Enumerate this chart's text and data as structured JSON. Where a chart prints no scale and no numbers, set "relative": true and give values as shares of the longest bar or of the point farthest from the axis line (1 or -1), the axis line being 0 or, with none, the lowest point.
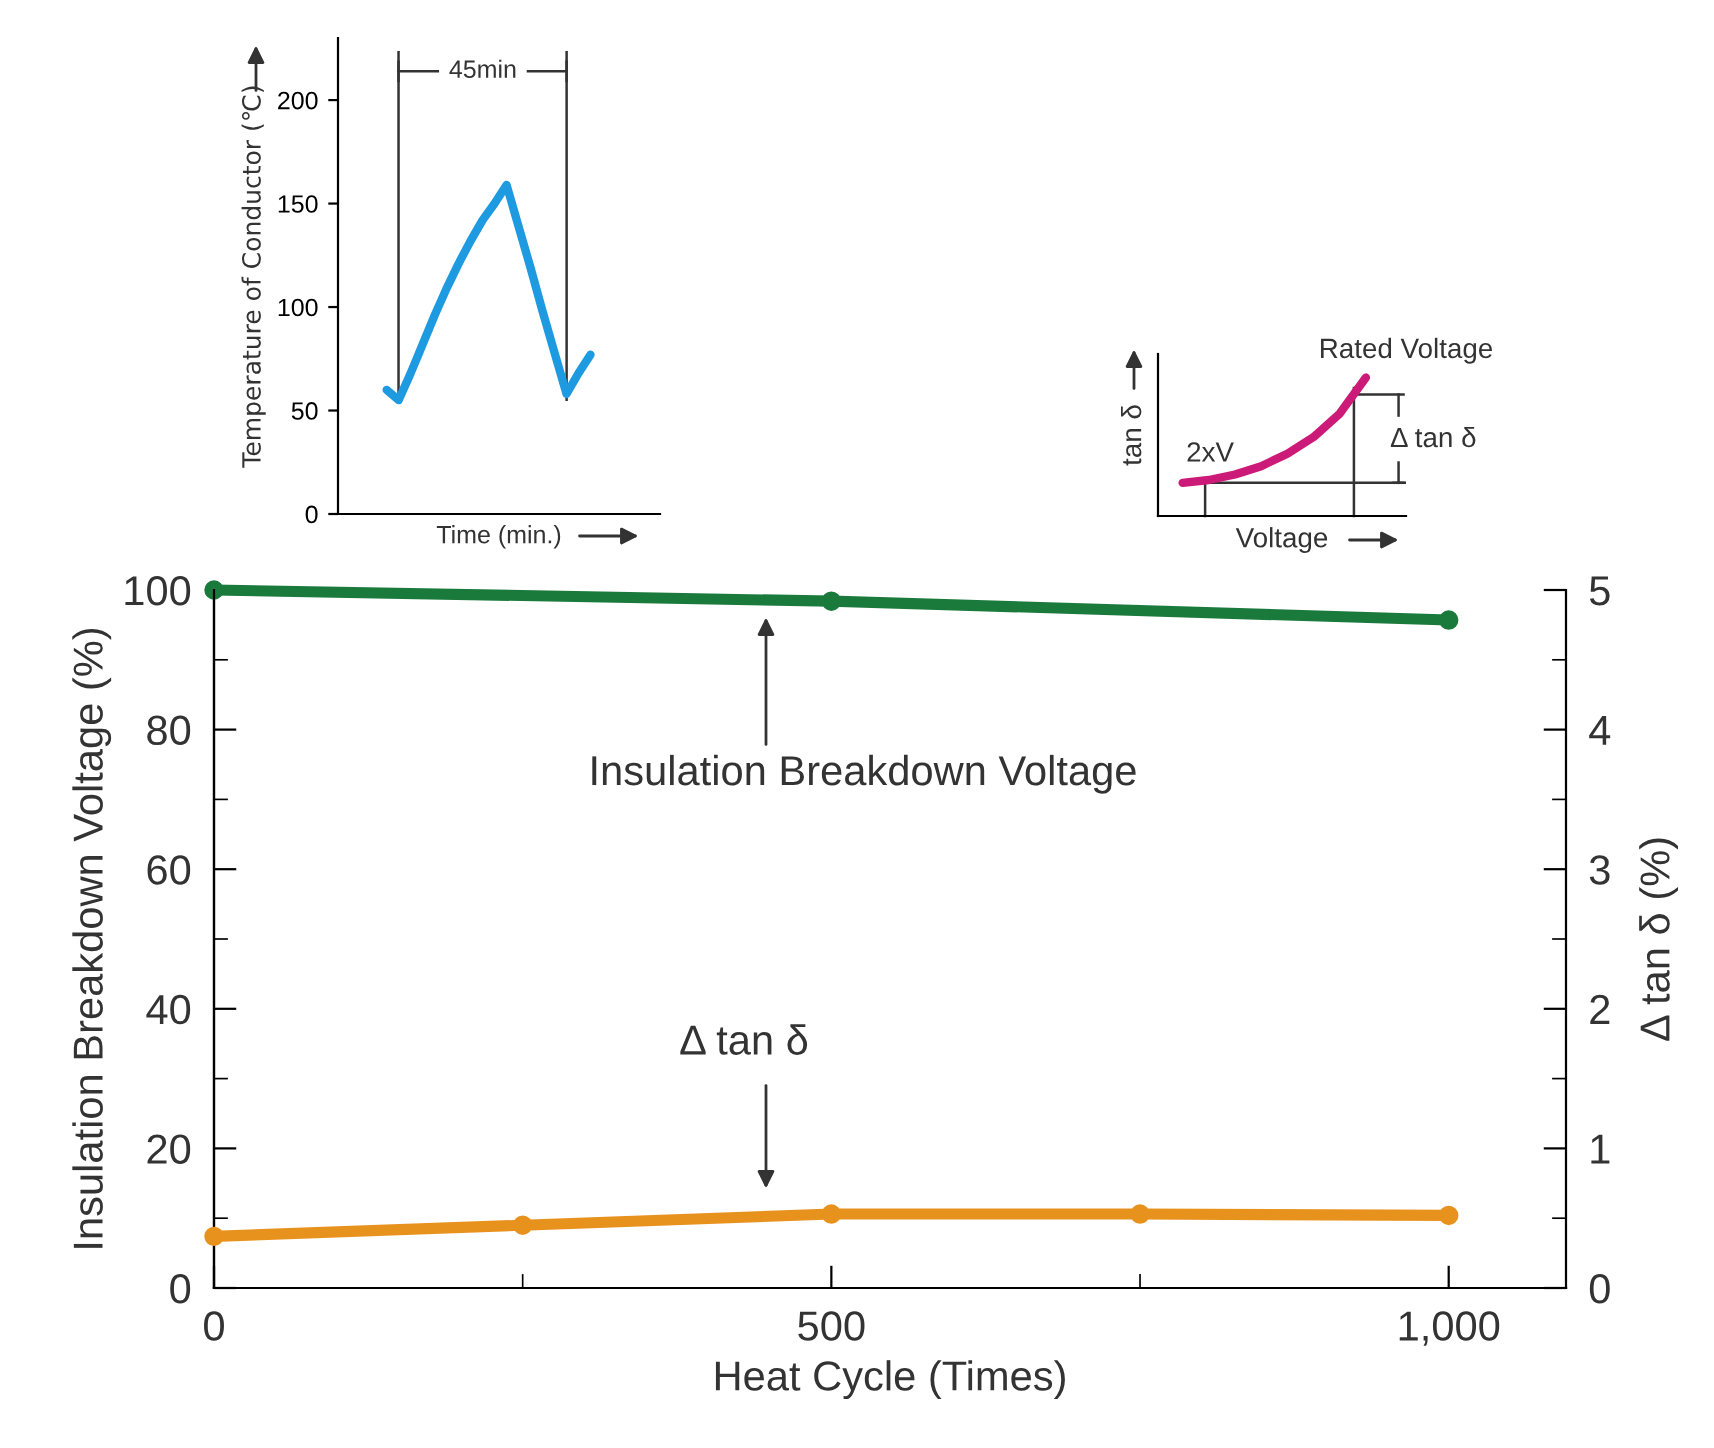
{
  "chart_data": [
    {
      "type": "line",
      "ylabel": "Temperature of Conductor (℃)",
      "xlabel": "Time (min.)",
      "categories": [
        null,
        null,
        null,
        null,
        null,
        null,
        null,
        null,
        null,
        null,
        null,
        null,
        null,
        null,
        null,
        null,
        null,
        null
      ],
      "series": [
        {
          "color": "#1e9be0",
          "values": [
            60,
            55,
            68,
            82,
            96,
            109,
            121,
            132,
            142,
            150,
            159,
            139,
            119,
            98,
            78,
            58,
            68,
            77
          ]
        }
      ],
      "ylim": [
        0,
        230
      ],
      "yticks": [
        0,
        50,
        100,
        150,
        200
      ],
      "tick_labels": "y",
      "annotations": [
        "45min"
      ]
    },
    {
      "type": "line",
      "relative": true,
      "ylabel": "tan δ",
      "xlabel": "Voltage",
      "categories": [
        null,
        null,
        null,
        null,
        null,
        null,
        null,
        null
      ],
      "series": [
        {
          "color": "#cc1a78",
          "values": [
            0.24,
            0.26,
            0.3,
            0.36,
            0.45,
            0.57,
            0.74,
            1
          ]
        }
      ],
      "ref_lines": [
        {
          "axis": "y",
          "value": 0.24,
          "color": "#333333"
        }
      ],
      "tick_labels": false,
      "annotations": [
        "2xV",
        "Rated Voltage",
        "Δ tan δ"
      ]
    },
    {
      "type": "line",
      "xlabel": "Heat Cycle (Times)",
      "ylabel": "Insulation Breakdown Voltage (%)",
      "y2label": "Δ tan δ (%)",
      "marker": "circle",
      "series": [
        {
          "color": "#1a7a3c",
          "x": [
            0,
            500,
            1000
          ],
          "values": [
            100,
            98.4,
            95.7
          ]
        },
        {
          "color": "#e8921e",
          "axis": "y2",
          "x": [
            0,
            250,
            500,
            750,
            1000
          ],
          "values": [
            0.37,
            0.45,
            0.53,
            0.53,
            0.52
          ]
        }
      ],
      "xlim": [
        0,
        1095
      ],
      "xticks": [
        0,
        {
          "value": 250,
          "label": null
        },
        500,
        {
          "value": 750,
          "label": null
        },
        {
          "value": 1000,
          "label": "1,000"
        }
      ],
      "ylim": [
        0,
        100
      ],
      "yticks": [
        0,
        {
          "value": 10,
          "label": null
        },
        20,
        {
          "value": 30,
          "label": null
        },
        40,
        {
          "value": 50,
          "label": null
        },
        60,
        {
          "value": 70,
          "label": null
        },
        80,
        {
          "value": 90,
          "label": null
        },
        100
      ],
      "y2lim": [
        0,
        5
      ],
      "y2ticks": [
        0,
        {
          "value": 0.5,
          "label": null
        },
        1,
        {
          "value": 1.5,
          "label": null
        },
        2,
        {
          "value": 2.5,
          "label": null
        },
        3,
        {
          "value": 3.5,
          "label": null
        },
        4,
        {
          "value": 4.5,
          "label": null
        },
        5
      ],
      "annotations": [
        "Insulation Breakdown Voltage",
        "Δ tan δ"
      ]
    }
  ]
}
